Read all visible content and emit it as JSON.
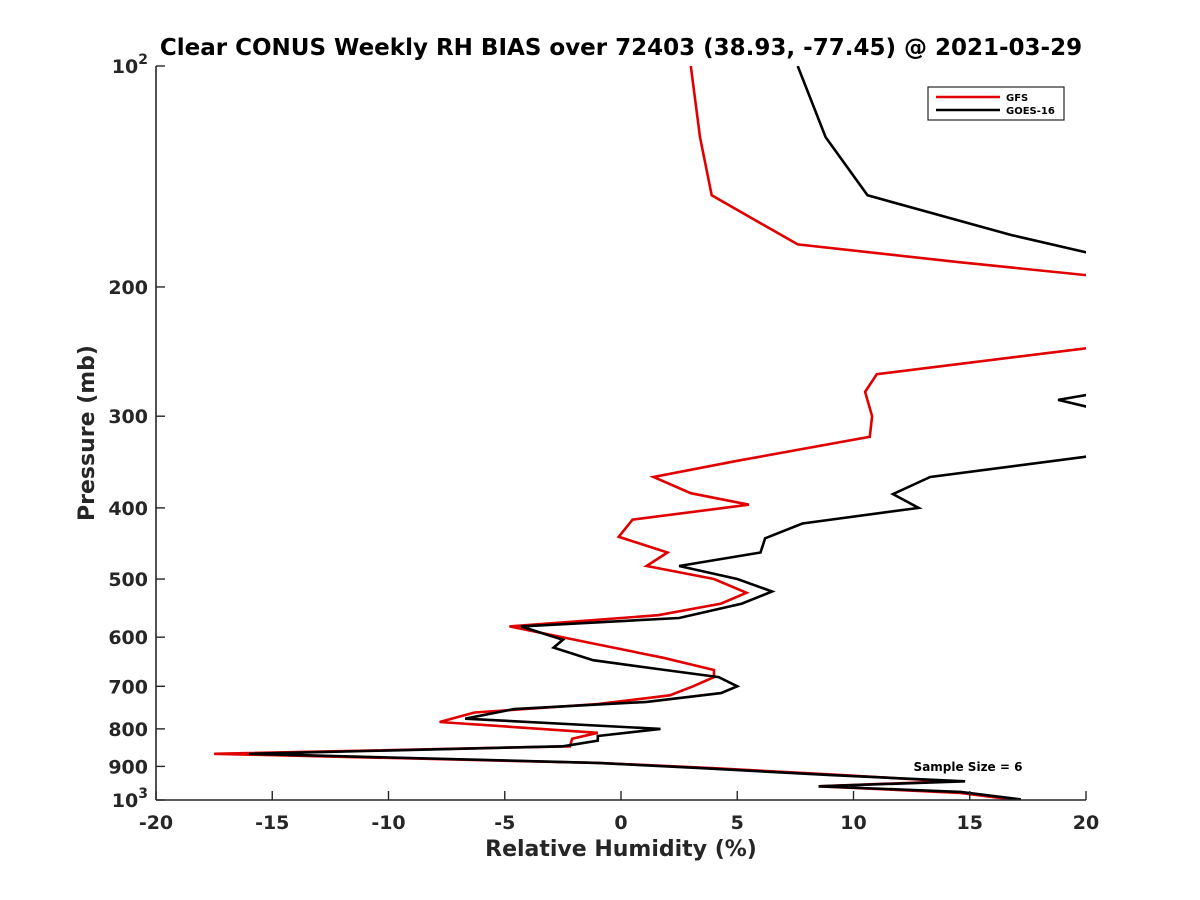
{
  "chart_data": {
    "type": "line",
    "title": "Clear CONUS Weekly RH BIAS over 72403 (38.93, -77.45) @ 2021-03-29",
    "xlabel": "Relative Humidity (%)",
    "ylabel": "Pressure (mb)",
    "xlim": [
      -20,
      20
    ],
    "ylim": [
      100,
      1000
    ],
    "yscale": "log",
    "y_reversed": true,
    "x_ticks": [
      -20,
      -15,
      -10,
      -5,
      0,
      5,
      10,
      15,
      20
    ],
    "x_tick_labels": [
      "-20",
      "-15",
      "-10",
      "-5",
      "0",
      "5",
      "10",
      "15",
      "20"
    ],
    "y_ticks": [
      100,
      200,
      300,
      400,
      500,
      600,
      700,
      800,
      900,
      1000
    ],
    "y_tick_labels": [
      {
        "base": "10",
        "exp": "2"
      },
      {
        "base": "200",
        "exp": ""
      },
      {
        "base": "300",
        "exp": ""
      },
      {
        "base": "400",
        "exp": ""
      },
      {
        "base": "500",
        "exp": ""
      },
      {
        "base": "600",
        "exp": ""
      },
      {
        "base": "700",
        "exp": ""
      },
      {
        "base": "800",
        "exp": ""
      },
      {
        "base": "900",
        "exp": ""
      },
      {
        "base": "10",
        "exp": "3"
      }
    ],
    "grid": false,
    "legend_position": "top-right",
    "annotation": "Sample Size = 6",
    "series": [
      {
        "name": "GFS",
        "color": "#e00000",
        "segments": [
          [
            [
              3.0,
              100
            ],
            [
              3.4,
              125
            ],
            [
              3.9,
              150
            ],
            [
              7.6,
              175
            ],
            [
              14.5,
              185
            ],
            [
              20.2,
              193
            ]
          ],
          [
            [
              20.2,
              242
            ],
            [
              11.0,
              263
            ],
            [
              10.5,
              278
            ],
            [
              10.8,
              300
            ],
            [
              10.7,
              320
            ],
            [
              5.0,
              345
            ],
            [
              1.4,
              363
            ],
            [
              3.0,
              382
            ],
            [
              5.5,
              396
            ],
            [
              0.5,
              415
            ],
            [
              -0.1,
              438
            ],
            [
              2.0,
              460
            ],
            [
              1.1,
              480
            ],
            [
              4.0,
              500
            ],
            [
              5.4,
              522
            ],
            [
              4.3,
              540
            ],
            [
              1.6,
              560
            ],
            [
              -4.8,
              580
            ],
            [
              -1.2,
              612
            ],
            [
              1.8,
              640
            ],
            [
              4.0,
              665
            ],
            [
              4.0,
              680
            ],
            [
              3.1,
              700
            ],
            [
              2.1,
              720
            ],
            [
              -1.0,
              740
            ],
            [
              -6.3,
              760
            ],
            [
              -7.8,
              783
            ],
            [
              -1.0,
              810
            ],
            [
              -2.1,
              825
            ],
            [
              -2.2,
              845
            ],
            [
              -17.5,
              865
            ],
            [
              -1.0,
              890
            ],
            [
              4.0,
              905
            ],
            [
              9.5,
              925
            ],
            [
              14.2,
              943
            ],
            [
              8.5,
              958
            ],
            [
              14.6,
              978
            ],
            [
              16.8,
              998
            ]
          ]
        ]
      },
      {
        "name": "GOES-16",
        "color": "#000000",
        "segments": [
          [
            [
              7.6,
              100
            ],
            [
              8.8,
              125
            ],
            [
              10.6,
              150
            ],
            [
              16.8,
              170
            ],
            [
              20.2,
              180
            ]
          ],
          [
            [
              20.2,
              280
            ],
            [
              18.8,
              285
            ],
            [
              20.2,
              292
            ]
          ],
          [
            [
              20.2,
              340
            ],
            [
              13.3,
              363
            ],
            [
              11.7,
              383
            ],
            [
              12.8,
              400
            ],
            [
              7.8,
              420
            ],
            [
              6.2,
              440
            ],
            [
              6.0,
              460
            ],
            [
              2.5,
              480
            ],
            [
              5.0,
              500
            ],
            [
              6.5,
              520
            ],
            [
              5.2,
              540
            ],
            [
              2.5,
              565
            ],
            [
              -4.3,
              580
            ],
            [
              -2.5,
              605
            ],
            [
              -2.9,
              620
            ],
            [
              -1.2,
              645
            ],
            [
              1.9,
              665
            ],
            [
              4.2,
              680
            ],
            [
              5.0,
              700
            ],
            [
              4.3,
              715
            ],
            [
              1.1,
              735
            ],
            [
              -4.6,
              752
            ],
            [
              -6.7,
              775
            ],
            [
              1.7,
              800
            ],
            [
              -1.0,
              818
            ],
            [
              -1.0,
              830
            ],
            [
              -2.5,
              845
            ],
            [
              -16.0,
              865
            ],
            [
              -1.0,
              890
            ],
            [
              3.5,
              905
            ],
            [
              9.0,
              925
            ],
            [
              14.8,
              943
            ],
            [
              8.5,
              958
            ],
            [
              14.6,
              975
            ],
            [
              17.2,
              998
            ]
          ]
        ]
      }
    ]
  }
}
